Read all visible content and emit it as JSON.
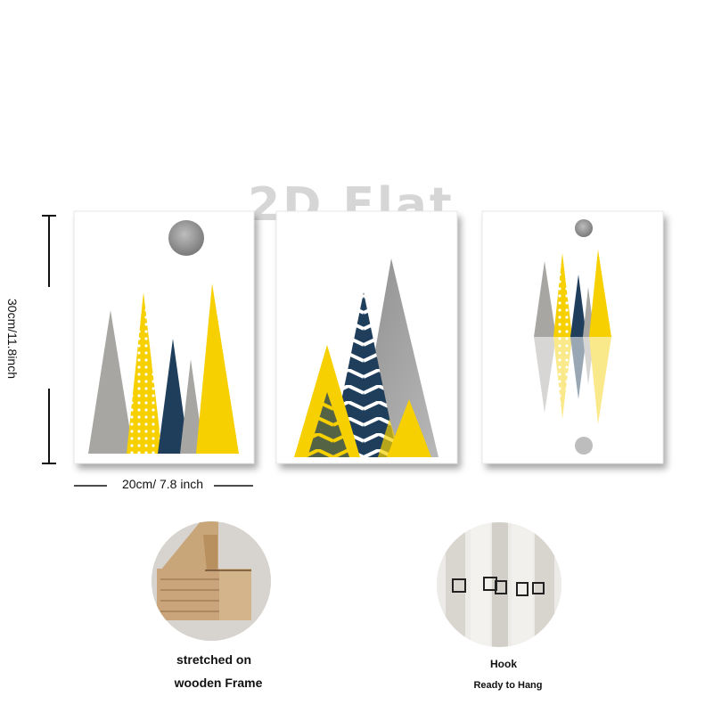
{
  "watermark": "2D Flat",
  "dimensions": {
    "height_label": "30cm/11.8inch",
    "width_label": "20cm/ 7.8 inch"
  },
  "detail_frame": {
    "caption_line1": "stretched on",
    "caption_line2": "wooden Frame"
  },
  "detail_hook": {
    "caption_line1": "Hook",
    "caption_line2": "Ready to Hang"
  },
  "colors": {
    "yellow": "#F6D000",
    "gray": "#A7A6A2",
    "navy": "#1F3E5C",
    "silver": "#9A9A9A"
  }
}
